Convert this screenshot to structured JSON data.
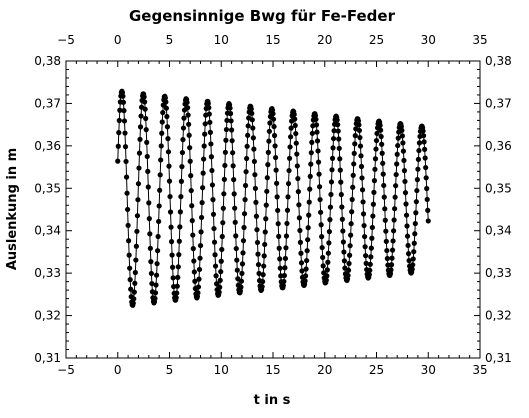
{
  "chart_data": {
    "type": "scatter",
    "title": "Gegensinnige Bwg für Fe-Feder",
    "xlabel": "t in s",
    "ylabel": "Auslenkung in m",
    "xlim": [
      -5,
      35
    ],
    "ylim": [
      0.31,
      0.38
    ],
    "grid": false,
    "secondary_axes": true,
    "x_ticks": [
      "−5",
      "0",
      "5",
      "10",
      "15",
      "20",
      "25",
      "30",
      "35"
    ],
    "y_ticks": [
      "0,31",
      "0,32",
      "0,33",
      "0,34",
      "0,35",
      "0,36",
      "0,37",
      "0,38"
    ],
    "series": [
      {
        "marker": "circle",
        "color": "#000000",
        "connected": true,
        "sample_interval": 0.05,
        "oscillation": {
          "t_start": 0.0,
          "t_end": 30.0,
          "equilibrium": 0.3475,
          "period": 2.07,
          "first_maximum_at": 0.4,
          "amplitude_at_start": 0.0255,
          "amplitude_at_end": 0.017
        },
        "peaks": [
          {
            "t": 0.4,
            "y": 0.373
          },
          {
            "t": 2.5,
            "y": 0.372
          },
          {
            "t": 4.6,
            "y": 0.371
          },
          {
            "t": 6.6,
            "y": 0.371
          },
          {
            "t": 8.7,
            "y": 0.372
          },
          {
            "t": 10.7,
            "y": 0.372
          },
          {
            "t": 12.8,
            "y": 0.371
          },
          {
            "t": 14.8,
            "y": 0.37
          },
          {
            "t": 16.9,
            "y": 0.37
          },
          {
            "t": 18.9,
            "y": 0.37
          },
          {
            "t": 20.9,
            "y": 0.37
          },
          {
            "t": 23.0,
            "y": 0.369
          },
          {
            "t": 25.1,
            "y": 0.369
          },
          {
            "t": 27.7,
            "y": 0.371
          },
          {
            "t": 29.8,
            "y": 0.37
          }
        ],
        "troughs": [
          {
            "t": 1.5,
            "y": 0.32
          },
          {
            "t": 3.5,
            "y": 0.321
          },
          {
            "t": 5.6,
            "y": 0.321
          },
          {
            "t": 7.6,
            "y": 0.321
          },
          {
            "t": 9.7,
            "y": 0.321
          },
          {
            "t": 11.8,
            "y": 0.321
          },
          {
            "t": 13.8,
            "y": 0.321
          },
          {
            "t": 15.8,
            "y": 0.321
          },
          {
            "t": 17.8,
            "y": 0.321
          },
          {
            "t": 19.9,
            "y": 0.321
          },
          {
            "t": 22.0,
            "y": 0.322
          },
          {
            "t": 24.0,
            "y": 0.322
          },
          {
            "t": 26.1,
            "y": 0.322
          },
          {
            "t": 28.1,
            "y": 0.322
          }
        ]
      }
    ]
  }
}
